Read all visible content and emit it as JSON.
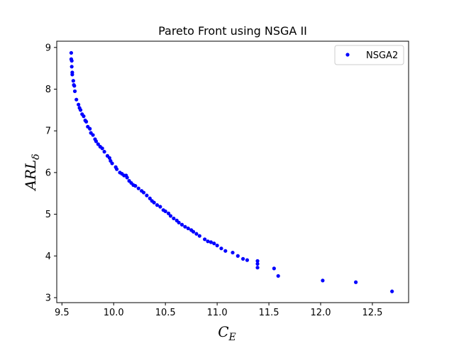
{
  "chart_data": {
    "type": "scatter",
    "title": "Pareto Front using NSGA II",
    "xlabel": {
      "main": "C",
      "sub": "E"
    },
    "ylabel": {
      "main": "ARL",
      "sub": "δ"
    },
    "xlim": [
      9.45,
      12.85
    ],
    "ylim": [
      2.88,
      9.15
    ],
    "xticks": [
      9.5,
      10.0,
      10.5,
      11.0,
      11.5,
      12.0,
      12.5
    ],
    "xtick_labels": [
      "9.5",
      "10.0",
      "10.5",
      "11.0",
      "11.5",
      "12.0",
      "12.5"
    ],
    "yticks": [
      3,
      4,
      5,
      6,
      7,
      8,
      9
    ],
    "ytick_labels": [
      "3",
      "4",
      "5",
      "6",
      "7",
      "8",
      "9"
    ],
    "grid": false,
    "legend_position": "top-right",
    "series": [
      {
        "name": "NSGA2",
        "color": "#0000ff",
        "marker": "circle",
        "points": [
          [
            9.59,
            8.87
          ],
          [
            9.59,
            8.72
          ],
          [
            9.595,
            8.68
          ],
          [
            9.595,
            8.54
          ],
          [
            9.6,
            8.4
          ],
          [
            9.6,
            8.35
          ],
          [
            9.61,
            8.2
          ],
          [
            9.615,
            8.1
          ],
          [
            9.62,
            8.08
          ],
          [
            9.625,
            7.95
          ],
          [
            9.64,
            7.75
          ],
          [
            9.66,
            7.63
          ],
          [
            9.67,
            7.55
          ],
          [
            9.68,
            7.5
          ],
          [
            9.695,
            7.4
          ],
          [
            9.71,
            7.35
          ],
          [
            9.725,
            7.25
          ],
          [
            9.735,
            7.22
          ],
          [
            9.75,
            7.1
          ],
          [
            9.77,
            7.05
          ],
          [
            9.78,
            6.95
          ],
          [
            9.8,
            6.9
          ],
          [
            9.82,
            6.8
          ],
          [
            9.83,
            6.75
          ],
          [
            9.85,
            6.68
          ],
          [
            9.87,
            6.62
          ],
          [
            9.89,
            6.58
          ],
          [
            9.91,
            6.5
          ],
          [
            9.94,
            6.4
          ],
          [
            9.96,
            6.35
          ],
          [
            9.97,
            6.28
          ],
          [
            9.985,
            6.22
          ],
          [
            10.02,
            6.13
          ],
          [
            10.03,
            6.08
          ],
          [
            10.06,
            6.0
          ],
          [
            10.08,
            5.97
          ],
          [
            10.1,
            5.93
          ],
          [
            10.12,
            5.93
          ],
          [
            10.13,
            5.88
          ],
          [
            10.15,
            5.8
          ],
          [
            10.17,
            5.75
          ],
          [
            10.19,
            5.7
          ],
          [
            10.21,
            5.68
          ],
          [
            10.24,
            5.62
          ],
          [
            10.27,
            5.56
          ],
          [
            10.29,
            5.52
          ],
          [
            10.32,
            5.45
          ],
          [
            10.35,
            5.38
          ],
          [
            10.37,
            5.32
          ],
          [
            10.39,
            5.28
          ],
          [
            10.42,
            5.22
          ],
          [
            10.45,
            5.18
          ],
          [
            10.48,
            5.1
          ],
          [
            10.5,
            5.07
          ],
          [
            10.53,
            5.02
          ],
          [
            10.55,
            4.96
          ],
          [
            10.58,
            4.9
          ],
          [
            10.61,
            4.85
          ],
          [
            10.63,
            4.8
          ],
          [
            10.66,
            4.75
          ],
          [
            10.69,
            4.7
          ],
          [
            10.72,
            4.66
          ],
          [
            10.75,
            4.62
          ],
          [
            10.77,
            4.58
          ],
          [
            10.8,
            4.53
          ],
          [
            10.83,
            4.48
          ],
          [
            10.88,
            4.4
          ],
          [
            10.91,
            4.35
          ],
          [
            10.94,
            4.33
          ],
          [
            10.97,
            4.3
          ],
          [
            11.0,
            4.25
          ],
          [
            11.04,
            4.18
          ],
          [
            11.08,
            4.12
          ],
          [
            11.15,
            4.08
          ],
          [
            11.2,
            4.0
          ],
          [
            11.25,
            3.93
          ],
          [
            11.29,
            3.9
          ],
          [
            11.39,
            3.88
          ],
          [
            11.39,
            3.81
          ],
          [
            11.39,
            3.72
          ],
          [
            11.55,
            3.7
          ],
          [
            11.59,
            3.52
          ],
          [
            12.02,
            3.41
          ],
          [
            12.34,
            3.37
          ],
          [
            12.69,
            3.15
          ]
        ]
      }
    ]
  }
}
